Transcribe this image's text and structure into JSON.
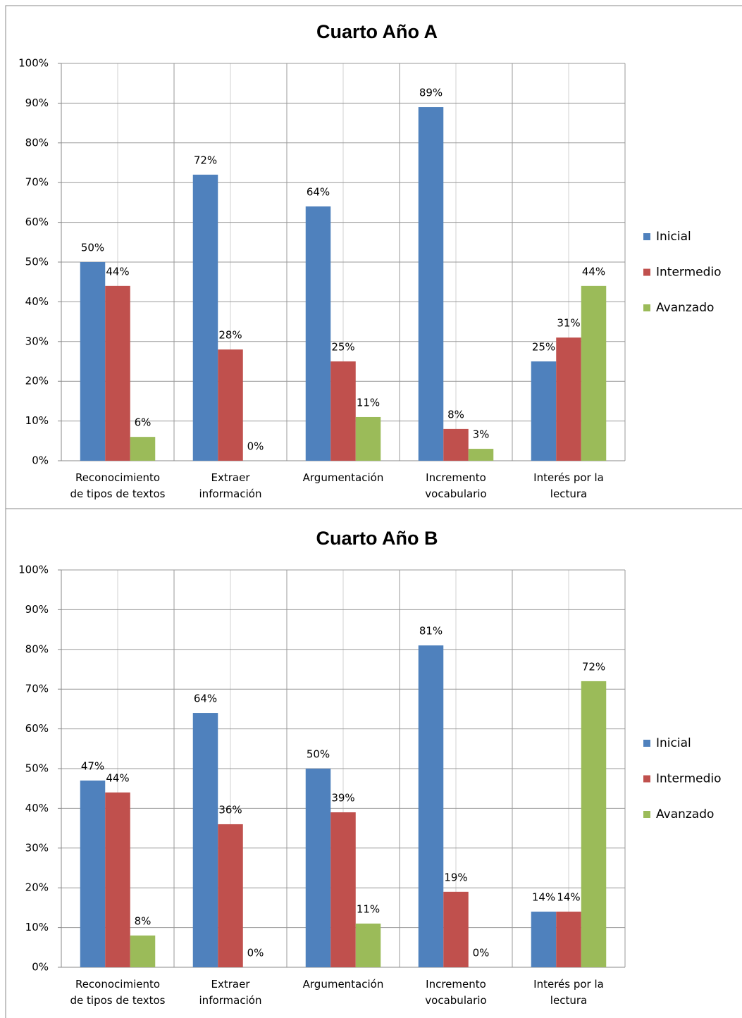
{
  "chart_data": [
    {
      "type": "bar",
      "title": "Cuarto Año A",
      "categories": [
        "Reconocimiento\nde tipos de textos",
        "Extraer\ninformación",
        "Argumentación",
        "Incremento\nvocabulario",
        "Interés por la\nlectura"
      ],
      "series": [
        {
          "name": "Inicial",
          "color": "#4f81bd",
          "values": [
            50,
            72,
            64,
            89,
            25
          ],
          "value_labels": [
            "50%",
            "72%",
            "64%",
            "89%",
            "25%"
          ]
        },
        {
          "name": "Intermedio",
          "color": "#c0504d",
          "values": [
            44,
            28,
            25,
            8,
            31
          ],
          "value_labels": [
            "44%",
            "28%",
            "25%",
            "8%",
            "31%"
          ]
        },
        {
          "name": "Avanzado",
          "color": "#9bbb59",
          "values": [
            6,
            0,
            11,
            3,
            44
          ],
          "value_labels": [
            "6%",
            "0%",
            "11%",
            "3%",
            "44%"
          ]
        }
      ],
      "ylim": [
        0,
        100
      ],
      "yticks": [
        {
          "value": 0,
          "label": "0%"
        },
        {
          "value": 10,
          "label": "10%"
        },
        {
          "value": 20,
          "label": "20%"
        },
        {
          "value": 30,
          "label": "30%"
        },
        {
          "value": 40,
          "label": "40%"
        },
        {
          "value": 50,
          "label": "50%"
        },
        {
          "value": 60,
          "label": "60%"
        },
        {
          "value": 70,
          "label": "70%"
        },
        {
          "value": 80,
          "label": "80%"
        },
        {
          "value": 90,
          "label": "90%"
        },
        {
          "value": 100,
          "label": "100%"
        }
      ],
      "grid": true,
      "legend": "right"
    },
    {
      "type": "bar",
      "title": "Cuarto Año B",
      "categories": [
        "Reconocimiento\nde tipos de textos",
        "Extraer\ninformación",
        "Argumentación",
        "Incremento\nvocabulario",
        "Interés por la\nlectura"
      ],
      "series": [
        {
          "name": "Inicial",
          "color": "#4f81bd",
          "values": [
            47,
            64,
            50,
            81,
            14
          ],
          "value_labels": [
            "47%",
            "64%",
            "50%",
            "81%",
            "14%"
          ]
        },
        {
          "name": "Intermedio",
          "color": "#c0504d",
          "values": [
            44,
            36,
            39,
            19,
            14
          ],
          "value_labels": [
            "44%",
            "36%",
            "39%",
            "19%",
            "14%"
          ]
        },
        {
          "name": "Avanzado",
          "color": "#9bbb59",
          "values": [
            8,
            0,
            11,
            0,
            72
          ],
          "value_labels": [
            "8%",
            "0%",
            "11%",
            "0%",
            "72%"
          ]
        }
      ],
      "ylim": [
        0,
        100
      ],
      "yticks": [
        {
          "value": 0,
          "label": "0%"
        },
        {
          "value": 10,
          "label": "10%"
        },
        {
          "value": 20,
          "label": "20%"
        },
        {
          "value": 30,
          "label": "30%"
        },
        {
          "value": 40,
          "label": "40%"
        },
        {
          "value": 50,
          "label": "50%"
        },
        {
          "value": 60,
          "label": "60%"
        },
        {
          "value": 70,
          "label": "70%"
        },
        {
          "value": 80,
          "label": "80%"
        },
        {
          "value": 90,
          "label": "90%"
        },
        {
          "value": 100,
          "label": "100%"
        }
      ],
      "grid": true,
      "legend": "right"
    }
  ]
}
